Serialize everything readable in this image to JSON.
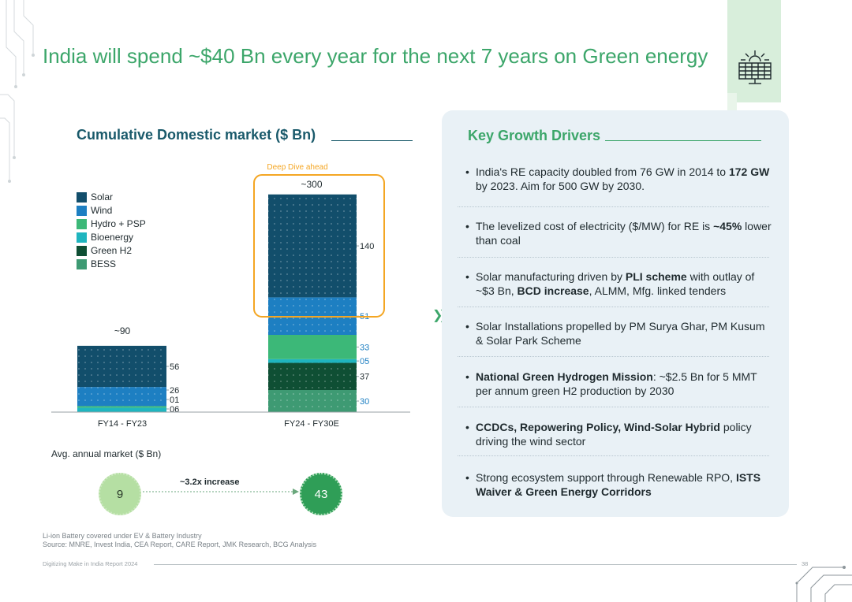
{
  "title": "India will spend ~$40 Bn every year for the next 7 years on Green energy",
  "chart_heading": "Cumulative Domestic market ($ Bn)",
  "chart_data": {
    "type": "bar",
    "stacked": true,
    "title": "Cumulative Domestic market ($ Bn)",
    "categories": [
      "FY14 - FY23",
      "FY24 - FY30E"
    ],
    "totals": [
      "~90",
      "~300"
    ],
    "series": [
      {
        "name": "BESS",
        "color": "#3e9a73",
        "values": [
          0,
          30
        ],
        "labels": [
          "",
          "30"
        ]
      },
      {
        "name": "Green H2",
        "color": "#0f4f34",
        "values": [
          0,
          37
        ],
        "labels": [
          "",
          "37"
        ]
      },
      {
        "name": "Bioenergy",
        "color": "#1fb5bf",
        "values": [
          6,
          5
        ],
        "labels": [
          "06",
          "05"
        ]
      },
      {
        "name": "Hydro + PSP",
        "color": "#3cb878",
        "values": [
          1,
          33
        ],
        "labels": [
          "01",
          "33"
        ]
      },
      {
        "name": "Wind",
        "color": "#1d7fc2",
        "values": [
          26,
          51
        ],
        "labels": [
          "26",
          "51"
        ]
      },
      {
        "name": "Solar",
        "color": "#124e6b",
        "values": [
          56,
          140
        ],
        "labels": [
          "56",
          "140"
        ]
      }
    ],
    "legend_order": [
      "Solar",
      "Wind",
      "Hydro + PSP",
      "Bioenergy",
      "Green H2",
      "BESS"
    ],
    "annotation": "Deep Dive ahead",
    "ylim": [
      0,
      300
    ]
  },
  "legend_colors": {
    "Solar": "#124e6b",
    "Wind": "#1d7fc2",
    "Hydro + PSP": "#3cb878",
    "Bioenergy": "#1fb5bf",
    "Green H2": "#0f4f34",
    "BESS": "#3e9a73"
  },
  "avg": {
    "label": "Avg. annual  market ($ Bn)",
    "start_value": "9",
    "end_value": "43",
    "increase_label": "~3.2x increase"
  },
  "footnotes": {
    "line1": "Li-ion Battery covered under EV & Battery Industry",
    "line2": "Source: MNRE, Invest India, CEA Report, CARE Report, JMK Research, BCG Analysis"
  },
  "footer": {
    "report": "Digitizing Make in India Report 2024",
    "page": "38"
  },
  "drivers": {
    "heading": "Key Growth Drivers",
    "bullet": "•",
    "items": [
      [
        {
          "t": "India's RE capacity doubled from 76 GW in 2014 to ",
          "b": false
        },
        {
          "t": "172 GW",
          "b": true
        },
        {
          "t": " by 2023. Aim for 500 GW by 2030.",
          "b": false
        }
      ],
      [
        {
          "t": "The levelized cost of electricity ($/MW) for RE is ",
          "b": false
        },
        {
          "t": "~45%",
          "b": true
        },
        {
          "t": " lower than coal",
          "b": false
        }
      ],
      [
        {
          "t": "Solar manufacturing driven by ",
          "b": false
        },
        {
          "t": "PLI scheme",
          "b": true
        },
        {
          "t": " with outlay of ~$3 Bn, ",
          "b": false
        },
        {
          "t": "BCD increase",
          "b": true
        },
        {
          "t": ", ALMM, Mfg. linked tenders",
          "b": false
        }
      ],
      [
        {
          "t": "Solar Installations propelled by PM Surya Ghar, PM Kusum & Solar Park Scheme",
          "b": false
        }
      ],
      [
        {
          "t": "National Green Hydrogen Mission",
          "b": true
        },
        {
          "t": ": ~$2.5 Bn for 5 MMT per annum green H2 production by 2030",
          "b": false
        }
      ],
      [
        {
          "t": "CCDCs, Repowering Policy, Wind-Solar Hybrid",
          "b": true
        },
        {
          "t": " policy driving the wind sector",
          "b": false
        }
      ],
      [
        {
          "t": "Strong ecosystem support through Renewable RPO, ",
          "b": false
        },
        {
          "t": "ISTS Waiver & Green Energy Corridors",
          "b": true
        }
      ]
    ]
  }
}
